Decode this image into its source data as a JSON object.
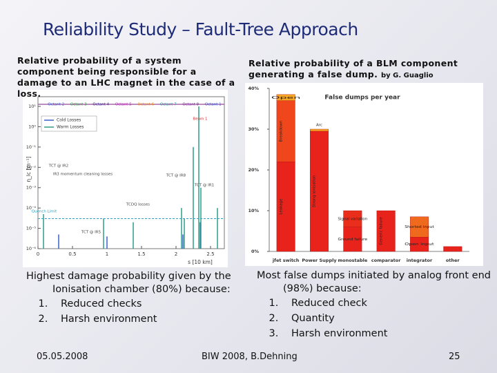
{
  "title": "Reliability Study – Fault-Tree Approach",
  "left": {
    "heading": "Relative probability of a system component being responsible for a damage to an LHC magnet in the case of a loss.",
    "text": "Highest damage probability given by the Ionisation chamber (80%) because:",
    "items": [
      "Reduced checks",
      "Harsh environment"
    ]
  },
  "right": {
    "heading": "Relative probability of a BLM component generating a false dump.",
    "credit": "by G. Guaglio",
    "text": "Most false dumps initiated by analog front end (98%) because:",
    "items": [
      "Reduced check",
      "Quantity",
      "Harsh environment"
    ]
  },
  "footer": {
    "date": "05.05.2008",
    "event": "BIW 2008, B.Dehning",
    "page": "25"
  },
  "chart_data": [
    {
      "type": "loss-map",
      "xlabel": "s [10 km]",
      "ylabel": "η_lc [m⁻¹]",
      "log_y": true,
      "xlim": [
        0,
        2.7
      ],
      "xticks": [
        0,
        0.5,
        1,
        1.5,
        2,
        2.5
      ],
      "ylim": [
        1e-06,
        30
      ],
      "yticks": [
        {
          "value": 10,
          "label": "10¹"
        },
        {
          "value": 1,
          "label": "10⁰"
        },
        {
          "value": 0.1,
          "label": "10⁻¹"
        },
        {
          "value": 0.01,
          "label": "10⁻²"
        },
        {
          "value": 0.001,
          "label": "10⁻³"
        },
        {
          "value": 0.0001,
          "label": "10⁻⁴"
        },
        {
          "value": 1e-05,
          "label": "10⁻⁵"
        },
        {
          "value": 1e-06,
          "label": "10⁻⁶"
        }
      ],
      "octants": [
        "Octant 2",
        "Octant 3",
        "Octant 4",
        "Octant 5",
        "Octant 6",
        "Octant 7",
        "Octant 8",
        "Octant 1"
      ],
      "series": [
        {
          "name": "Cold Losses",
          "color": "#3a5fcd",
          "x": [
            0.3,
            1.0,
            2.1,
            2.35
          ],
          "values": [
            5e-06,
            4e-06,
            5e-06,
            2e-05
          ]
        },
        {
          "name": "Warm Losses",
          "color": "#2e9e8a",
          "x": [
            0.08,
            0.95,
            1.38,
            2.08,
            2.12,
            2.25,
            2.33,
            2.36,
            2.6
          ],
          "values": [
            5e-05,
            3e-05,
            2e-05,
            0.0001,
            3e-05,
            0.1,
            10,
            0.001,
            0.0001
          ]
        }
      ],
      "quench_limit": 3e-05,
      "annotations": [
        "Beam 1",
        "TCT @ IR2",
        "IR3 momentum cleaning losses",
        "TCDQ losses",
        "TCT @ IR8",
        "TCT @ IR1",
        "Quench Limit",
        "TCT @ IR5"
      ]
    },
    {
      "type": "stacked-bar",
      "title": "False dumps per year",
      "categories": [
        "jfet switch",
        "Power Supply",
        "monostable",
        "comparator",
        "integrator",
        "other"
      ],
      "ylim": [
        0,
        40
      ],
      "yticks": [
        {
          "value": 0,
          "label": "0%"
        },
        {
          "value": 10,
          "label": "10%"
        },
        {
          "value": 20,
          "label": "20%"
        },
        {
          "value": 30,
          "label": "30%"
        },
        {
          "value": 40,
          "label": "40%"
        }
      ],
      "stacks": [
        [
          {
            "label": "Leakage",
            "value": 22,
            "color": "#e8231c"
          },
          {
            "label": "Breakdown",
            "value": 15,
            "color": "#f0461b"
          },
          {
            "label": "Open",
            "value": 1.5,
            "color": "#f6a623"
          }
        ],
        [
          {
            "label": "Strong ionisation",
            "value": 29.5,
            "color": "#e8231c"
          },
          {
            "label": "Arc",
            "value": 0.5,
            "color": "#f6a623"
          }
        ],
        [
          {
            "label": "Ground failure",
            "value": 6,
            "color": "#e8231c"
          },
          {
            "label": "Signal variation",
            "value": 4,
            "color": "#ea2e1c"
          }
        ],
        [
          {
            "label": "Generic failure",
            "value": 10,
            "color": "#e8231c"
          }
        ],
        [
          {
            "label": "Open input",
            "value": 3.5,
            "color": "#e8231c"
          },
          {
            "label": "Shorted input",
            "value": 5,
            "color": "#f06a1e"
          }
        ],
        [
          {
            "value": 1.2,
            "color": "#e8231c"
          }
        ]
      ]
    }
  ]
}
